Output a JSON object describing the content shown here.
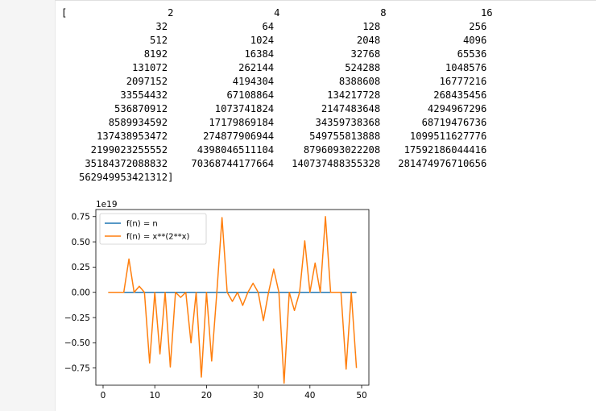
{
  "output": {
    "array_text": "[                 2                 4                 8                16\n                32                64               128               256\n               512              1024              2048              4096\n              8192             16384             32768             65536\n            131072            262144            524288           1048576\n           2097152           4194304           8388608          16777216\n          33554432          67108864         134217728         268435456\n         536870912        1073741824        2147483648        4294967296\n        8589934592       17179869184       34359738368       68719476736\n      137438953472      274877906944      549755813888     1099511627776\n     2199023255552     4398046511104     8796093022208    17592186044416\n    35184372088832    70368744177664   140737488355328   281474976710656\n   562949953421312]"
  },
  "chart_data": {
    "type": "line",
    "offset_label": "1e19",
    "xlim": [
      -1.4,
      51.4
    ],
    "ylim": [
      -0.92,
      0.82
    ],
    "xticks": [
      0,
      10,
      20,
      30,
      40,
      50
    ],
    "xtick_labels": [
      "0",
      "10",
      "20",
      "30",
      "40",
      "50"
    ],
    "yticks": [
      -0.75,
      -0.5,
      -0.25,
      0.0,
      0.25,
      0.5,
      0.75
    ],
    "ytick_labels": [
      "−0.75",
      "−0.50",
      "−0.25",
      "0.00",
      "0.25",
      "0.50",
      "0.75"
    ],
    "grid": false,
    "legend_position": "top-left",
    "x": [
      1,
      2,
      3,
      4,
      5,
      6,
      7,
      8,
      9,
      10,
      11,
      12,
      13,
      14,
      15,
      16,
      17,
      18,
      19,
      20,
      21,
      22,
      23,
      24,
      25,
      26,
      27,
      28,
      29,
      30,
      31,
      32,
      33,
      34,
      35,
      36,
      37,
      38,
      39,
      40,
      41,
      42,
      43,
      44,
      45,
      46,
      47,
      48,
      49
    ],
    "series": [
      {
        "name": "f(n) = n",
        "color": "#1f77b4",
        "values": [
          0,
          0,
          0,
          0,
          0,
          0,
          0,
          0,
          0,
          0,
          0,
          0,
          0,
          0,
          0,
          0,
          0,
          0,
          0,
          0,
          0,
          0,
          0,
          0,
          0,
          0,
          0,
          0,
          0,
          0,
          0,
          0,
          0,
          0,
          0,
          0,
          0,
          0,
          0,
          0,
          0,
          0,
          0,
          0,
          0,
          0,
          0,
          0,
          0
        ]
      },
      {
        "name": "f(n) = x**(2**x)",
        "color": "#ff7f0e",
        "values": [
          0,
          0,
          0,
          0,
          0.33,
          0,
          0.06,
          0,
          -0.7,
          0,
          -0.61,
          0,
          -0.74,
          0,
          -0.05,
          0,
          -0.5,
          0,
          -0.84,
          0,
          -0.68,
          0,
          0.74,
          0,
          -0.09,
          0,
          -0.13,
          0,
          0.09,
          0,
          -0.28,
          0,
          0.23,
          0,
          -0.9,
          0,
          -0.18,
          0,
          0.51,
          0,
          0.29,
          0,
          0.75,
          0,
          0,
          0,
          -0.76,
          0,
          -0.75
        ]
      }
    ]
  }
}
